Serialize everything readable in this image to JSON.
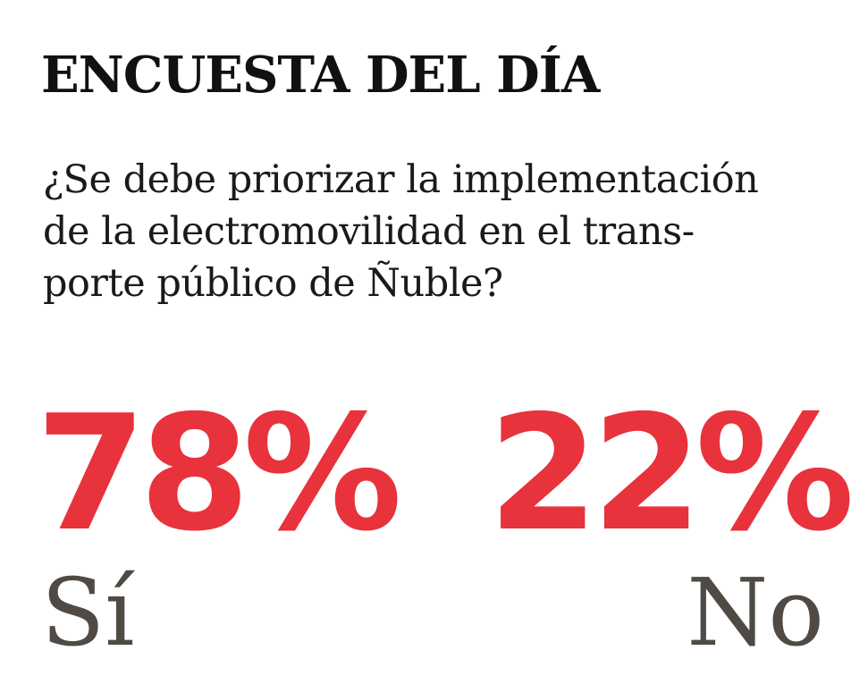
{
  "poll": {
    "title": "ENCUESTA DEL DÍA",
    "question_lines": [
      "¿Se debe priorizar la implementación",
      "de la electromovilidad en el trans-",
      "porte público de Ñuble?"
    ],
    "results": [
      {
        "percent": "78%",
        "answer": "Sí"
      },
      {
        "percent": "22%",
        "answer": "No"
      }
    ]
  },
  "colors": {
    "accent_red": "#e8323c",
    "title_black": "#111111",
    "answer_gray": "#4f4a44"
  }
}
